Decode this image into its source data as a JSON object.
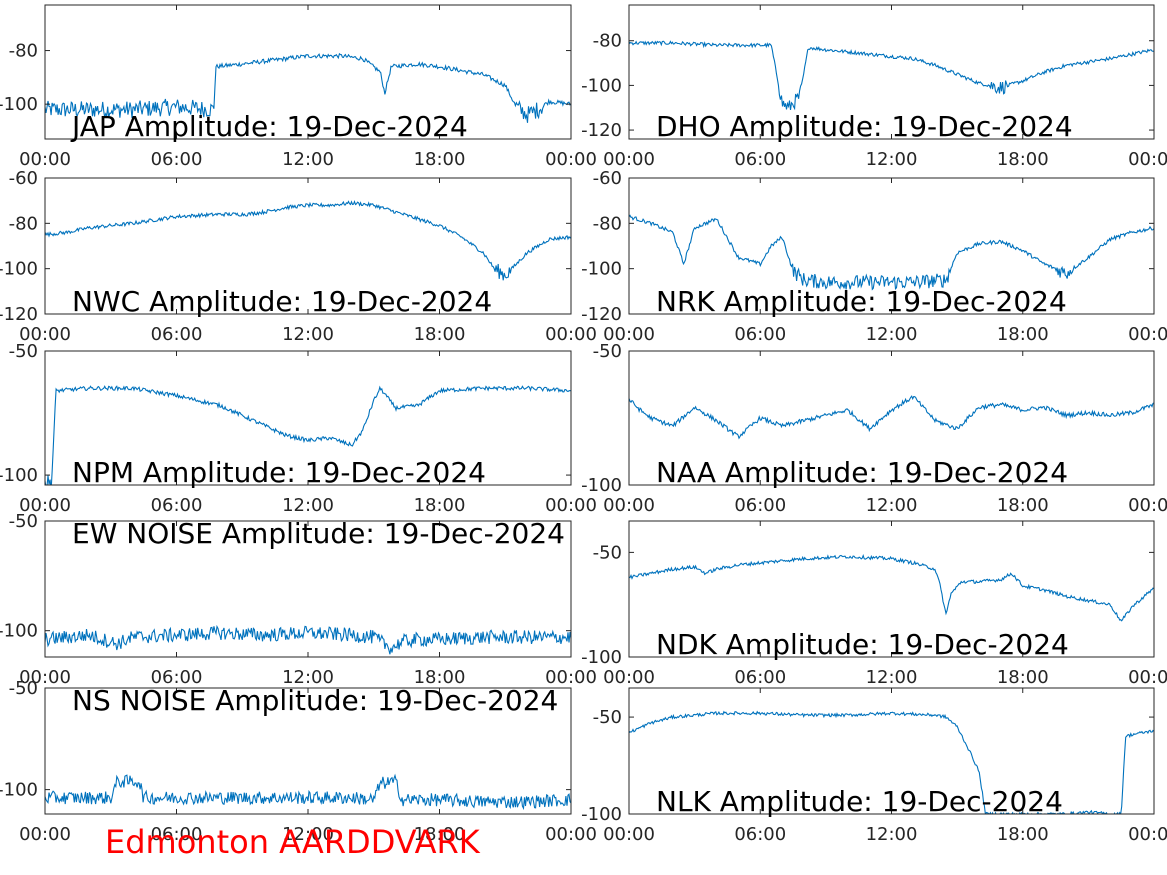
{
  "figure": {
    "footer": "Edmonton AARDDVARK",
    "footer_color": "#ff0000",
    "line_color": "#0072bd",
    "axes_color": "#262626"
  },
  "chart_data": [
    {
      "type": "line",
      "title": "JAP Amplitude: 19-Dec-2024",
      "xlabel": "",
      "ylabel": "",
      "xlim": [
        0,
        24
      ],
      "ylim": [
        -113,
        -63
      ],
      "xticks": [
        0,
        6,
        12,
        18,
        24
      ],
      "xtick_labels": [
        "00:00",
        "06:00",
        "12:00",
        "18:00",
        "00:00"
      ],
      "yticks": [
        -80,
        -100
      ],
      "ytick_labels": [
        "-80",
        "-100"
      ],
      "grid": false,
      "series": [
        {
          "x": [
            0,
            2,
            4,
            6,
            7.7,
            7.8,
            9,
            10,
            12,
            13.5,
            14.5,
            15.3,
            15.5,
            15.8,
            17,
            18,
            20,
            21,
            21.5,
            22,
            22.5,
            23,
            24
          ],
          "y": [
            -102,
            -102,
            -102,
            -101,
            -102,
            -86,
            -85,
            -84,
            -82,
            -82,
            -83,
            -88,
            -96,
            -86,
            -85,
            -86,
            -89,
            -93,
            -101,
            -104,
            -102,
            -99,
            -100
          ]
        }
      ]
    },
    {
      "type": "line",
      "title": "DHO Amplitude: 19-Dec-2024",
      "xlabel": "",
      "ylabel": "",
      "xlim": [
        0,
        24
      ],
      "ylim": [
        -124,
        -64
      ],
      "xticks": [
        0,
        6,
        12,
        18,
        24
      ],
      "xtick_labels": [
        "00:00",
        "06:00",
        "12:00",
        "18:00",
        "00:00"
      ],
      "yticks": [
        -80,
        -100,
        -120
      ],
      "ytick_labels": [
        "-80",
        "-100",
        "-120"
      ],
      "grid": false,
      "series": [
        {
          "x": [
            0,
            2,
            4,
            6.5,
            7,
            7.3,
            7.8,
            8.2,
            9,
            10,
            12,
            13,
            14,
            15,
            16,
            17,
            18,
            19,
            20,
            22,
            24
          ],
          "y": [
            -81,
            -81,
            -82,
            -82,
            -108,
            -110,
            -105,
            -83,
            -84,
            -85,
            -87,
            -88,
            -91,
            -95,
            -99,
            -101,
            -98,
            -94,
            -91,
            -88,
            -84
          ]
        }
      ]
    },
    {
      "type": "line",
      "title": "NWC Amplitude: 19-Dec-2024",
      "xlabel": "",
      "ylabel": "",
      "xlim": [
        0,
        24
      ],
      "ylim": [
        -120,
        -60
      ],
      "xticks": [
        0,
        6,
        12,
        18,
        24
      ],
      "xtick_labels": [
        "00:00",
        "06:00",
        "12:00",
        "18:00",
        "00:00"
      ],
      "yticks": [
        -60,
        -80,
        -100,
        -120
      ],
      "ytick_labels": [
        "-60",
        "-80",
        "-100",
        "-120"
      ],
      "grid": false,
      "series": [
        {
          "x": [
            0,
            1,
            2,
            4,
            6,
            8,
            9.2,
            10,
            11,
            12,
            13,
            14,
            15,
            16,
            17,
            18,
            19,
            20,
            20.5,
            21,
            22,
            23,
            24
          ],
          "y": [
            -85,
            -84,
            -82,
            -80,
            -77,
            -76,
            -76,
            -75,
            -73,
            -72,
            -72,
            -71,
            -72,
            -75,
            -78,
            -81,
            -86,
            -93,
            -100,
            -103,
            -93,
            -87,
            -86
          ]
        }
      ]
    },
    {
      "type": "line",
      "title": "NRK Amplitude: 19-Dec-2024",
      "xlabel": "",
      "ylabel": "",
      "xlim": [
        0,
        24
      ],
      "ylim": [
        -120,
        -60
      ],
      "xticks": [
        0,
        6,
        12,
        18,
        24
      ],
      "xtick_labels": [
        "00:00",
        "06:00",
        "12:00",
        "18:00",
        "00:00"
      ],
      "yticks": [
        -60,
        -80,
        -100,
        -120
      ],
      "ytick_labels": [
        "-60",
        "-80",
        "-100",
        "-120"
      ],
      "grid": false,
      "series": [
        {
          "x": [
            0,
            1,
            2,
            2.5,
            3,
            4,
            5,
            6,
            6.5,
            7,
            7.5,
            8,
            9,
            11,
            13,
            14.5,
            15,
            16,
            17,
            18,
            19,
            20,
            21,
            22,
            23,
            24
          ],
          "y": [
            -77,
            -80,
            -84,
            -98,
            -82,
            -78,
            -95,
            -98,
            -90,
            -86,
            -101,
            -105,
            -106,
            -106,
            -106,
            -105,
            -93,
            -89,
            -88,
            -92,
            -98,
            -102,
            -95,
            -87,
            -84,
            -82
          ]
        }
      ]
    },
    {
      "type": "line",
      "title": "NPM Amplitude: 19-Dec-2024",
      "xlabel": "",
      "ylabel": "",
      "xlim": [
        0,
        24
      ],
      "ylim": [
        -104,
        -50
      ],
      "xticks": [
        0,
        6,
        12,
        18,
        24
      ],
      "xtick_labels": [
        "00:00",
        "06:00",
        "12:00",
        "18:00",
        "00:00"
      ],
      "yticks": [
        -50,
        -100
      ],
      "ytick_labels": [
        "-50",
        "-100"
      ],
      "grid": false,
      "series": [
        {
          "x": [
            0,
            0.3,
            0.5,
            2,
            4,
            6,
            8,
            9,
            10,
            11,
            12,
            13,
            14,
            14.5,
            15,
            15.3,
            16,
            17,
            18,
            20,
            22,
            24
          ],
          "y": [
            -103,
            -103,
            -66,
            -65,
            -65,
            -68,
            -72,
            -76,
            -80,
            -84,
            -86,
            -85,
            -88,
            -82,
            -70,
            -65,
            -73,
            -72,
            -66,
            -65,
            -65,
            -66
          ]
        }
      ]
    },
    {
      "type": "line",
      "title": "NAA Amplitude: 19-Dec-2024",
      "xlabel": "",
      "ylabel": "",
      "xlim": [
        0,
        24
      ],
      "ylim": [
        -100,
        -50
      ],
      "xticks": [
        0,
        6,
        12,
        18,
        24
      ],
      "xtick_labels": [
        "00:00",
        "06:00",
        "12:00",
        "18:00",
        "00:00"
      ],
      "yticks": [
        -50,
        -100
      ],
      "ytick_labels": [
        "-50",
        "-100"
      ],
      "grid": false,
      "series": [
        {
          "x": [
            0,
            0.5,
            1,
            2,
            3,
            4,
            5,
            6,
            7,
            8,
            9,
            10,
            11,
            12,
            13,
            14,
            15,
            16,
            17,
            18,
            19,
            20,
            21,
            22,
            23,
            24
          ],
          "y": [
            -68,
            -72,
            -75,
            -78,
            -71,
            -76,
            -82,
            -75,
            -78,
            -76,
            -74,
            -72,
            -79,
            -72,
            -67,
            -76,
            -79,
            -71,
            -70,
            -72,
            -71,
            -74,
            -73,
            -74,
            -73,
            -70
          ]
        }
      ]
    },
    {
      "type": "line",
      "title": "EW NOISE Amplitude: 19-Dec-2024",
      "xlabel": "",
      "ylabel": "",
      "xlim": [
        0,
        24
      ],
      "ylim": [
        -112,
        -50
      ],
      "xticks": [
        0,
        6,
        12,
        18,
        24
      ],
      "xtick_labels": [
        "00:00",
        "06:00",
        "12:00",
        "18:00",
        "00:00"
      ],
      "yticks": [
        -50,
        -100
      ],
      "ytick_labels": [
        "-50",
        "-100"
      ],
      "grid": false,
      "series": [
        {
          "x": [
            0,
            2,
            3.3,
            4,
            6,
            8,
            10,
            12,
            14,
            15,
            15.8,
            16.3,
            17,
            18,
            20,
            22,
            24
          ],
          "y": [
            -104,
            -102,
            -106,
            -103,
            -102,
            -101,
            -102,
            -101,
            -102,
            -103,
            -108,
            -105,
            -104,
            -104,
            -103,
            -103,
            -103
          ]
        }
      ]
    },
    {
      "type": "line",
      "title": "NDK Amplitude: 19-Dec-2024",
      "xlabel": "",
      "ylabel": "",
      "xlim": [
        0,
        24
      ],
      "ylim": [
        -100,
        -35
      ],
      "xticks": [
        0,
        6,
        12,
        18,
        24
      ],
      "xtick_labels": [
        "00:00",
        "06:00",
        "12:00",
        "18:00",
        "00:00"
      ],
      "yticks": [
        -50,
        -100
      ],
      "ytick_labels": [
        "-50",
        "-100"
      ],
      "grid": false,
      "series": [
        {
          "x": [
            0,
            1,
            2,
            3,
            3.5,
            4,
            5,
            6,
            8,
            10,
            12,
            13,
            14,
            14.2,
            14.5,
            14.7,
            15.2,
            16,
            17,
            17.5,
            18,
            19,
            20,
            21,
            22,
            22.5,
            23,
            24
          ],
          "y": [
            -62,
            -60,
            -58,
            -57,
            -60,
            -58,
            -56,
            -55,
            -53,
            -52,
            -53,
            -55,
            -58,
            -65,
            -80,
            -70,
            -64,
            -64,
            -63,
            -60,
            -66,
            -68,
            -71,
            -73,
            -75,
            -83,
            -76,
            -67
          ]
        }
      ]
    },
    {
      "type": "line",
      "title": "NS NOISE Amplitude: 19-Dec-2024",
      "xlabel": "",
      "ylabel": "",
      "xlim": [
        0,
        24
      ],
      "ylim": [
        -112,
        -50
      ],
      "xticks": [
        0,
        6,
        12,
        18,
        24
      ],
      "xtick_labels": [
        "00:00",
        "06:00",
        "12:00",
        "18:00",
        "00:00"
      ],
      "yticks": [
        -50,
        -100
      ],
      "ytick_labels": [
        "-50",
        "-100"
      ],
      "grid": false,
      "series": [
        {
          "x": [
            0,
            2,
            3,
            3.3,
            4.3,
            4.5,
            6,
            8,
            10,
            12,
            14,
            15,
            15.3,
            16,
            16.3,
            18,
            20,
            22,
            24
          ],
          "y": [
            -104,
            -104,
            -104,
            -96,
            -96,
            -104,
            -104,
            -104,
            -104,
            -104,
            -104,
            -105,
            -97,
            -96,
            -105,
            -105,
            -106,
            -106,
            -105
          ]
        }
      ]
    },
    {
      "type": "line",
      "title": "NLK Amplitude: 19-Dec-2024",
      "xlabel": "",
      "ylabel": "",
      "xlim": [
        0,
        24
      ],
      "ylim": [
        -100,
        -35
      ],
      "xticks": [
        0,
        6,
        12,
        18,
        24
      ],
      "xtick_labels": [
        "00:00",
        "06:00",
        "12:00",
        "18:00",
        "00:00"
      ],
      "yticks": [
        -50,
        -100
      ],
      "ytick_labels": [
        "-50",
        "-100"
      ],
      "grid": false,
      "series": [
        {
          "x": [
            0,
            1,
            2,
            4,
            6,
            8,
            10,
            12,
            14,
            14.5,
            15,
            15.5,
            16,
            16.3,
            16.4,
            18,
            20,
            21,
            22,
            22.5,
            22.7,
            23,
            24
          ],
          "y": [
            -58,
            -53,
            -50,
            -48,
            -48,
            -49,
            -49,
            -48,
            -49,
            -50,
            -55,
            -66,
            -78,
            -100,
            -100,
            -100,
            -100,
            -99,
            -100,
            -100,
            -60,
            -59,
            -57
          ]
        }
      ]
    }
  ]
}
